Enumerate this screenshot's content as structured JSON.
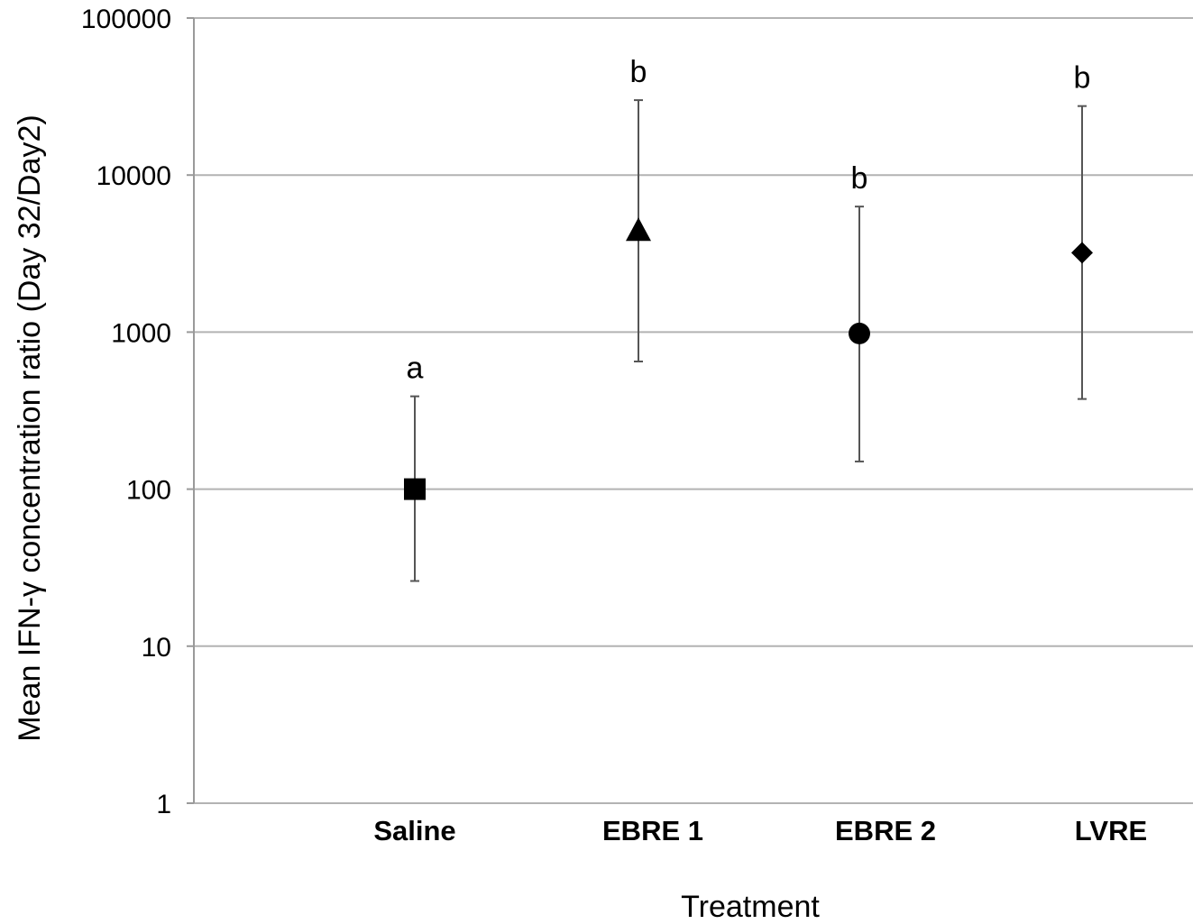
{
  "chart_data": {
    "type": "scatter",
    "title": "",
    "xlabel": "Treatment",
    "ylabel": "Mean IFN-γ concentration ratio (Day 32/Day2)",
    "yscale": "log",
    "ylim": [
      1,
      100000
    ],
    "yticks": [
      "1",
      "10",
      "100",
      "1000",
      "10000",
      "100000"
    ],
    "grid": true,
    "categories": [
      "Saline",
      "EBRE 1",
      "EBRE 2",
      "LVRE"
    ],
    "points": [
      {
        "category": "Saline",
        "value": 100,
        "lower": 26,
        "upper": 390,
        "marker": "square",
        "label": "a"
      },
      {
        "category": "EBRE 1",
        "value": 4400,
        "lower": 650,
        "upper": 30000,
        "marker": "triangle",
        "label": "b"
      },
      {
        "category": "EBRE 2",
        "value": 980,
        "lower": 150,
        "upper": 6300,
        "marker": "circle",
        "label": "b"
      },
      {
        "category": "LVRE",
        "value": 3200,
        "lower": 375,
        "upper": 27500,
        "marker": "diamond",
        "label": "b"
      }
    ],
    "colors": {
      "grid": "#b3b3b3",
      "marker": "#000000",
      "errorbar": "#555555"
    }
  }
}
